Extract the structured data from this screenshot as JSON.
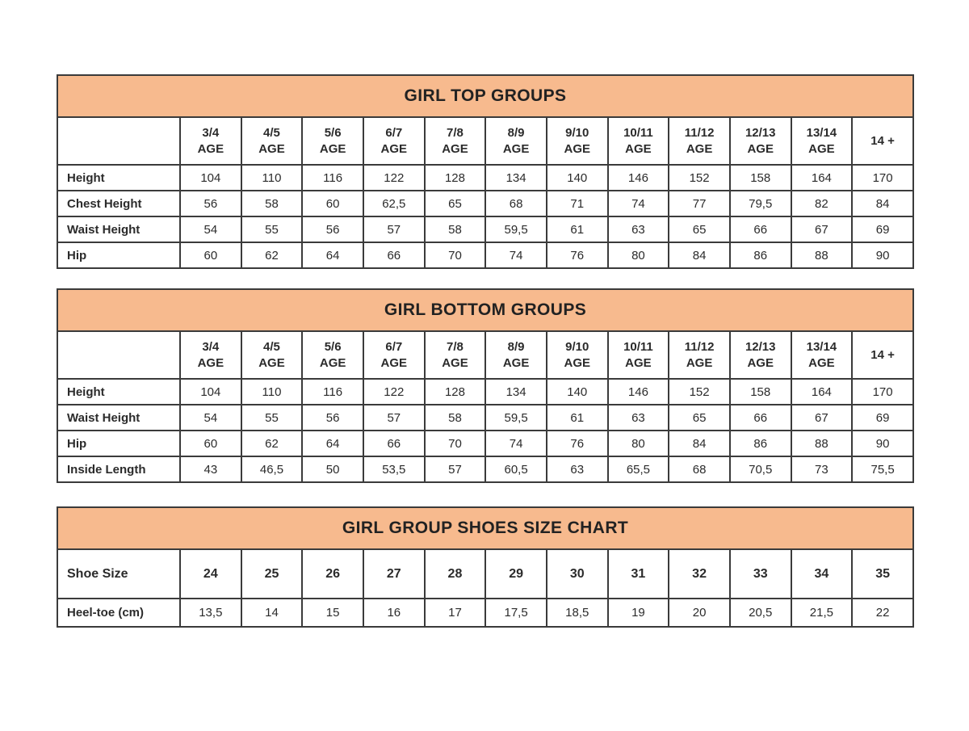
{
  "colors": {
    "band_background": "#f7ba8e",
    "border": "#3b3b3b",
    "text": "#2b2b2b",
    "page_background": "#ffffff"
  },
  "chart_data": [
    {
      "type": "table",
      "title": "GIRL TOP GROUPS",
      "columns": [
        {
          "label": "3/4",
          "sub": "AGE"
        },
        {
          "label": "4/5",
          "sub": "AGE"
        },
        {
          "label": "5/6",
          "sub": "AGE"
        },
        {
          "label": "6/7",
          "sub": "AGE"
        },
        {
          "label": "7/8",
          "sub": "AGE"
        },
        {
          "label": "8/9",
          "sub": "AGE"
        },
        {
          "label": "9/10",
          "sub": "AGE"
        },
        {
          "label": "10/11",
          "sub": "AGE"
        },
        {
          "label": "11/12",
          "sub": "AGE"
        },
        {
          "label": "12/13",
          "sub": "AGE"
        },
        {
          "label": "13/14",
          "sub": "AGE"
        },
        {
          "label": "14 +",
          "sub": ""
        }
      ],
      "rows": [
        {
          "label": "Height",
          "values": [
            "104",
            "110",
            "116",
            "122",
            "128",
            "134",
            "140",
            "146",
            "152",
            "158",
            "164",
            "170"
          ]
        },
        {
          "label": "Chest Height",
          "values": [
            "56",
            "58",
            "60",
            "62,5",
            "65",
            "68",
            "71",
            "74",
            "77",
            "79,5",
            "82",
            "84"
          ]
        },
        {
          "label": "Waist Height",
          "values": [
            "54",
            "55",
            "56",
            "57",
            "58",
            "59,5",
            "61",
            "63",
            "65",
            "66",
            "67",
            "69"
          ]
        },
        {
          "label": "Hip",
          "values": [
            "60",
            "62",
            "64",
            "66",
            "70",
            "74",
            "76",
            "80",
            "84",
            "86",
            "88",
            "90"
          ]
        }
      ]
    },
    {
      "type": "table",
      "title": "GIRL BOTTOM GROUPS",
      "columns": [
        {
          "label": "3/4",
          "sub": "AGE"
        },
        {
          "label": "4/5",
          "sub": "AGE"
        },
        {
          "label": "5/6",
          "sub": "AGE"
        },
        {
          "label": "6/7",
          "sub": "AGE"
        },
        {
          "label": "7/8",
          "sub": "AGE"
        },
        {
          "label": "8/9",
          "sub": "AGE"
        },
        {
          "label": "9/10",
          "sub": "AGE"
        },
        {
          "label": "10/11",
          "sub": "AGE"
        },
        {
          "label": "11/12",
          "sub": "AGE"
        },
        {
          "label": "12/13",
          "sub": "AGE"
        },
        {
          "label": "13/14",
          "sub": "AGE"
        },
        {
          "label": "14 +",
          "sub": ""
        }
      ],
      "rows": [
        {
          "label": "Height",
          "values": [
            "104",
            "110",
            "116",
            "122",
            "128",
            "134",
            "140",
            "146",
            "152",
            "158",
            "164",
            "170"
          ]
        },
        {
          "label": "Waist Height",
          "values": [
            "54",
            "55",
            "56",
            "57",
            "58",
            "59,5",
            "61",
            "63",
            "65",
            "66",
            "67",
            "69"
          ]
        },
        {
          "label": "Hip",
          "values": [
            "60",
            "62",
            "64",
            "66",
            "70",
            "74",
            "76",
            "80",
            "84",
            "86",
            "88",
            "90"
          ]
        },
        {
          "label": "Inside Length",
          "values": [
            "43",
            "46,5",
            "50",
            "53,5",
            "57",
            "60,5",
            "63",
            "65,5",
            "68",
            "70,5",
            "73",
            "75,5"
          ]
        }
      ]
    },
    {
      "type": "table",
      "title": "GIRL GROUP SHOES SIZE CHART",
      "rows": [
        {
          "label": "Shoe Size",
          "header": true,
          "values": [
            "24",
            "25",
            "26",
            "27",
            "28",
            "29",
            "30",
            "31",
            "32",
            "33",
            "34",
            "35"
          ]
        },
        {
          "label": "Heel-toe (cm)",
          "values": [
            "13,5",
            "14",
            "15",
            "16",
            "17",
            "17,5",
            "18,5",
            "19",
            "20",
            "20,5",
            "21,5",
            "22"
          ]
        }
      ]
    }
  ]
}
